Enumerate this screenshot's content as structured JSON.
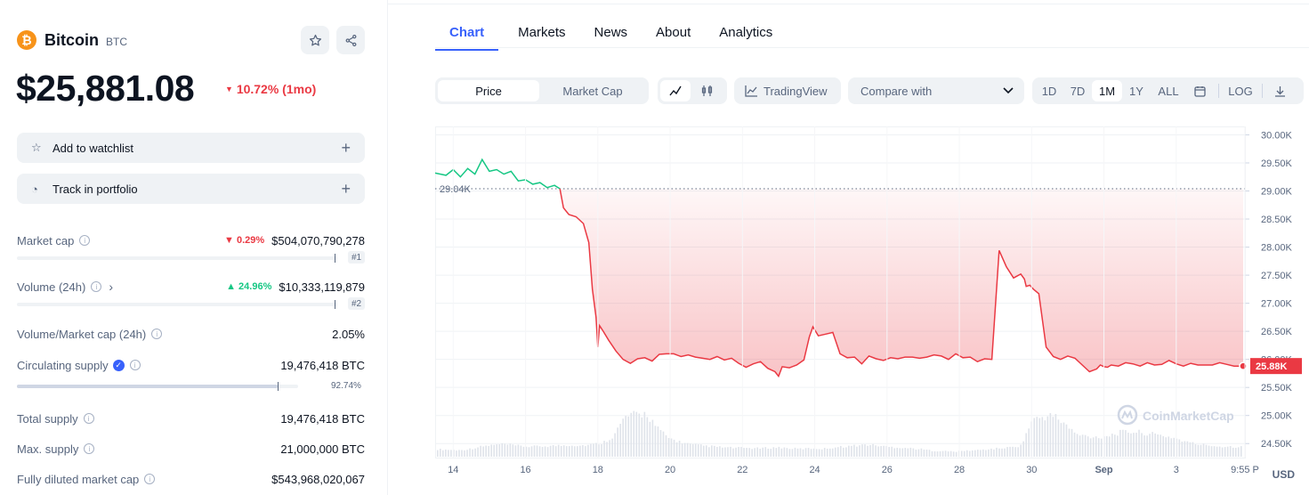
{
  "coin": {
    "name": "Bitcoin",
    "symbol": "BTC",
    "logo_glyph": "₿",
    "price": "$25,881.08",
    "change": "10.72% (1mo)"
  },
  "actions": {
    "watchlist": "Add to watchlist",
    "portfolio": "Track in portfolio"
  },
  "stats": {
    "market_cap": {
      "label": "Market cap",
      "change": "0.29%",
      "value": "$504,070,790,278",
      "rank": "#1"
    },
    "volume": {
      "label": "Volume (24h)",
      "change": "24.96%",
      "value": "$10,333,119,879",
      "rank": "#2"
    },
    "vol_mcap": {
      "label": "Volume/Market cap (24h)",
      "value": "2.05%"
    },
    "circulating": {
      "label": "Circulating supply",
      "value": "19,476,418 BTC",
      "percent": "92.74%",
      "fraction": 0.9274
    },
    "total": {
      "label": "Total supply",
      "value": "19,476,418 BTC"
    },
    "max": {
      "label": "Max. supply",
      "value": "21,000,000 BTC"
    },
    "fdmc": {
      "label": "Fully diluted market cap",
      "value": "$543,968,020,067"
    }
  },
  "tabs": [
    "Chart",
    "Markets",
    "News",
    "About",
    "Analytics"
  ],
  "toolbar": {
    "price": "Price",
    "market_cap": "Market Cap",
    "tradingview": "TradingView",
    "compare": "Compare with",
    "ranges": [
      "1D",
      "7D",
      "1M",
      "1Y",
      "ALL"
    ],
    "active_range": "1M",
    "log": "LOG"
  },
  "colors": {
    "up": "#16c784",
    "down": "#ea3943",
    "accent": "#3861fb",
    "brand": "#f7931a"
  },
  "chart_data": {
    "type": "line",
    "x_ticks": [
      "14",
      "16",
      "18",
      "20",
      "22",
      "24",
      "26",
      "28",
      "30",
      "Sep",
      "3",
      "9:55 P"
    ],
    "y_ticks": [
      "30.00K",
      "29.50K",
      "29.00K",
      "28.50K",
      "28.00K",
      "27.50K",
      "27.00K",
      "26.50K",
      "26.00K",
      "25.50K",
      "25.00K",
      "24.50K"
    ],
    "ylim": [
      24250,
      30150
    ],
    "reference_line": 29040,
    "reference_label": "29.04K",
    "last_price_label": "25.88K",
    "watermark": "CoinMarketCap",
    "currency": "USD",
    "series": [
      {
        "x": [
          13.5,
          13.8,
          14.0,
          14.2,
          14.4,
          14.6,
          14.8,
          15.0,
          15.2,
          15.4,
          15.6,
          15.8,
          16.0,
          16.2,
          16.4,
          16.6,
          16.8,
          16.95,
          17.05,
          17.2,
          17.4,
          17.6,
          17.75,
          17.85,
          17.95,
          18.0,
          18.05,
          18.15,
          18.3,
          18.5,
          18.7,
          18.9,
          19.1,
          19.3,
          19.5,
          19.7,
          19.9,
          20.1,
          20.3,
          20.5,
          20.7,
          20.9,
          21.1,
          21.3,
          21.5,
          21.7,
          21.9,
          22.1,
          22.3,
          22.5,
          22.7,
          22.9,
          23.0,
          23.1,
          23.3,
          23.5,
          23.7,
          23.85,
          23.95,
          24.1,
          24.3,
          24.5,
          24.7,
          24.9,
          25.1,
          25.3,
          25.5,
          25.7,
          25.9,
          26.1,
          26.3,
          26.5,
          26.7,
          26.9,
          27.1,
          27.3,
          27.5,
          27.7,
          27.9,
          28.1,
          28.3,
          28.5,
          28.7,
          28.9,
          29.1,
          29.3,
          29.5,
          29.7,
          29.8,
          29.85,
          29.95,
          30.05,
          30.2,
          30.4,
          30.6,
          30.8,
          31.0,
          31.2,
          31.4,
          31.6,
          31.8,
          31.9,
          32.0,
          32.1,
          32.2,
          32.4,
          32.6,
          32.8,
          33.0,
          33.2,
          33.4,
          33.6,
          33.8,
          34.0,
          34.2,
          34.4,
          34.6,
          34.8,
          35.0,
          35.2,
          35.4,
          35.6,
          35.85
        ],
        "y": [
          29320,
          29280,
          29380,
          29250,
          29400,
          29300,
          29560,
          29350,
          29380,
          29300,
          29350,
          29180,
          29200,
          29120,
          29150,
          29060,
          29100,
          29040,
          28700,
          28580,
          28540,
          28420,
          28080,
          27250,
          26750,
          26220,
          26600,
          26500,
          26340,
          26150,
          26000,
          25930,
          26010,
          26030,
          25970,
          26090,
          26100,
          26100,
          26050,
          26080,
          26040,
          26020,
          26000,
          26050,
          25990,
          26020,
          25930,
          25860,
          25920,
          25960,
          25840,
          25780,
          25700,
          25870,
          25850,
          25900,
          25990,
          26400,
          26580,
          26420,
          26450,
          26480,
          26100,
          26030,
          26040,
          25920,
          26060,
          26010,
          25980,
          26030,
          26010,
          26040,
          26040,
          26020,
          26040,
          26080,
          26060,
          26000,
          26100,
          26030,
          26040,
          25960,
          26010,
          26000,
          27940,
          27650,
          27450,
          27520,
          27430,
          27300,
          27320,
          27250,
          27170,
          26220,
          26050,
          26000,
          26060,
          26020,
          25900,
          25780,
          25830,
          25900,
          25870,
          25860,
          25900,
          25880,
          25940,
          25920,
          25880,
          25940,
          25900,
          25910,
          25980,
          25920,
          25880,
          25930,
          25900,
          25900,
          25900,
          25940,
          25910,
          25880,
          25881
        ]
      }
    ],
    "volume_profile": [
      0.16,
      0.15,
      0.14,
      0.17,
      0.22,
      0.25,
      0.27,
      0.24,
      0.22,
      0.22,
      0.23,
      0.24,
      0.25,
      0.24,
      0.26,
      0.3,
      0.45,
      0.85,
      0.9,
      0.93,
      0.6,
      0.4,
      0.32,
      0.26,
      0.24,
      0.22,
      0.2,
      0.19,
      0.19,
      0.18,
      0.19,
      0.2,
      0.18,
      0.17,
      0.18,
      0.17,
      0.2,
      0.22,
      0.24,
      0.26,
      0.24,
      0.21,
      0.2,
      0.18,
      0.16,
      0.13,
      0.12,
      0.11,
      0.13,
      0.14,
      0.16,
      0.18,
      0.2,
      0.24,
      0.78,
      0.86,
      0.88,
      0.7,
      0.48,
      0.44,
      0.42,
      0.46,
      0.52,
      0.54,
      0.52,
      0.48,
      0.45,
      0.4,
      0.32,
      0.27,
      0.25,
      0.22,
      0.22,
      0.21
    ]
  }
}
